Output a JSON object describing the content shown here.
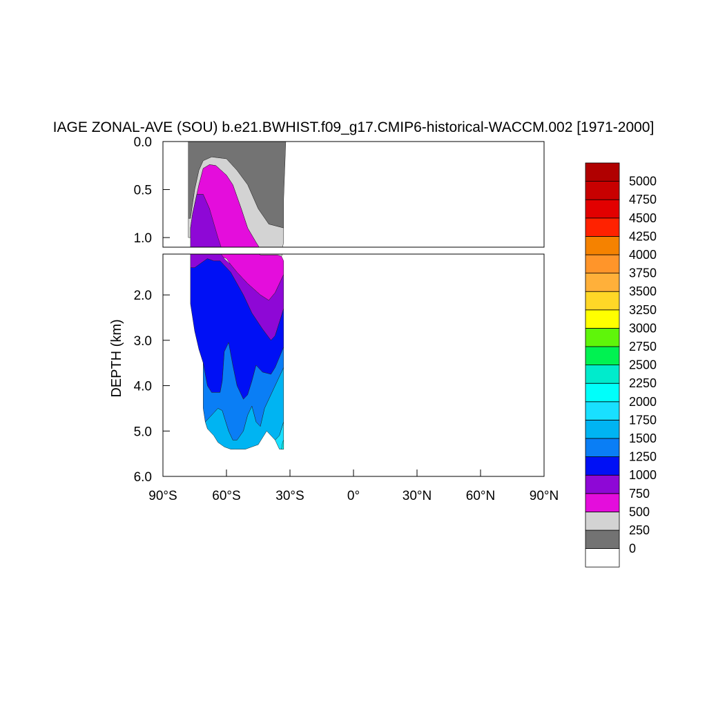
{
  "chart_data": {
    "type": "heatmap",
    "title": "IAGE ZONAL-AVE (SOU) b.e21.BWHIST.f09_g17.CMIP6-historical-WACCM.002 [1971-2000]",
    "ylabel": "DEPTH (km)",
    "xlabel": "",
    "x_range": [
      -90,
      90
    ],
    "y_range_km": [
      0,
      6
    ],
    "upper_panel_y_range_km": [
      0,
      1.1
    ],
    "lower_panel_y_range_km": [
      1.1,
      6
    ],
    "x_ticks": [
      "90°S",
      "60°S",
      "30°S",
      "0°",
      "30°N",
      "60°N",
      "90°N"
    ],
    "x_tick_values": [
      -90,
      -60,
      -30,
      0,
      30,
      60,
      90
    ],
    "y_ticks_upper": [
      "0.0",
      "0.5",
      "1.0"
    ],
    "y_tick_values_upper": [
      0.0,
      0.5,
      1.0
    ],
    "y_ticks_lower": [
      "2.0",
      "3.0",
      "4.0",
      "5.0",
      "6.0"
    ],
    "y_tick_values_lower": [
      2.0,
      3.0,
      4.0,
      5.0,
      6.0
    ],
    "data_extent_lat": [
      -78,
      -31
    ],
    "max_depth_km": 5.4,
    "contour_levels": [
      0,
      250,
      500,
      750,
      1000,
      1250,
      1500,
      1750,
      2000,
      2250,
      2500,
      2750,
      3000,
      3250,
      3500,
      3750,
      4000,
      4250,
      4500,
      4750,
      5000
    ],
    "colorbar_labels": [
      "5000",
      "4750",
      "4500",
      "4250",
      "4000",
      "3750",
      "3500",
      "3250",
      "3000",
      "2750",
      "2500",
      "2250",
      "2000",
      "1750",
      "1500",
      "1250",
      "1000",
      "750",
      "500",
      "250",
      "0"
    ],
    "colorbar_colors": [
      "#ffffff",
      "#737373",
      "#d3d3d3",
      "#e40ddc",
      "#8e08d6",
      "#0010f5",
      "#0a7ef5",
      "#00b4f2",
      "#19e0ff",
      "#00fffa",
      "#00ebcc",
      "#00f251",
      "#5ff50a",
      "#ffff00",
      "#ffd727",
      "#ffb03a",
      "#ff952a",
      "#f58200",
      "#ff2200",
      "#e20000",
      "#c80000",
      "#b00000"
    ],
    "regions": [
      {
        "band": "0-250",
        "color": "#737373",
        "points": [
          [
            -78,
            0
          ],
          [
            -32,
            0
          ],
          [
            -33,
            0.6
          ],
          [
            -33,
            0.9
          ],
          [
            -40,
            0.86
          ],
          [
            -45,
            0.7
          ],
          [
            -50,
            0.45
          ],
          [
            -55,
            0.3
          ],
          [
            -60,
            0.18
          ],
          [
            -67,
            0.16
          ],
          [
            -71,
            0.2
          ],
          [
            -73,
            0.3
          ],
          [
            -75,
            0.5
          ],
          [
            -77,
            0.8
          ],
          [
            -78,
            0.8
          ]
        ]
      },
      {
        "band": "250-500",
        "color": "#d3d3d3",
        "points": [
          [
            -78,
            0.8
          ],
          [
            -77,
            0.8
          ],
          [
            -75,
            0.5
          ],
          [
            -73,
            0.3
          ],
          [
            -71,
            0.2
          ],
          [
            -67,
            0.16
          ],
          [
            -60,
            0.18
          ],
          [
            -55,
            0.3
          ],
          [
            -50,
            0.45
          ],
          [
            -45,
            0.7
          ],
          [
            -40,
            0.86
          ],
          [
            -33,
            0.9
          ],
          [
            -33,
            1.05
          ],
          [
            -34,
            1.15
          ],
          [
            -36,
            1.12
          ],
          [
            -40,
            1.12
          ],
          [
            -44,
            1.12
          ],
          [
            -46,
            1.05
          ],
          [
            -50,
            0.9
          ],
          [
            -53,
            0.7
          ],
          [
            -57,
            0.45
          ],
          [
            -60,
            0.35
          ],
          [
            -65,
            0.25
          ],
          [
            -68,
            0.24
          ],
          [
            -71,
            0.28
          ],
          [
            -73,
            0.45
          ],
          [
            -75,
            0.65
          ],
          [
            -76,
            0.8
          ],
          [
            -77,
            1.0
          ],
          [
            -78,
            1.0
          ]
        ]
      },
      {
        "band": "500-750",
        "color": "#e40ddc",
        "points": [
          [
            -77,
            1.0
          ],
          [
            -76,
            0.8
          ],
          [
            -75,
            0.65
          ],
          [
            -73,
            0.45
          ],
          [
            -71,
            0.28
          ],
          [
            -68,
            0.24
          ],
          [
            -65,
            0.25
          ],
          [
            -60,
            0.35
          ],
          [
            -57,
            0.45
          ],
          [
            -53,
            0.7
          ],
          [
            -50,
            0.9
          ],
          [
            -46,
            1.05
          ],
          [
            -44,
            1.12
          ],
          [
            -40,
            1.12
          ],
          [
            -36,
            1.12
          ],
          [
            -34,
            1.15
          ],
          [
            -33,
            1.25
          ],
          [
            -33,
            1.55
          ],
          [
            -37,
            1.95
          ],
          [
            -40,
            2.12
          ],
          [
            -44,
            2.0
          ],
          [
            -50,
            1.75
          ],
          [
            -55,
            1.5
          ],
          [
            -58,
            1.33
          ],
          [
            -60,
            1.2
          ],
          [
            -64,
            1.12
          ],
          [
            -68,
            0.7
          ],
          [
            -71,
            0.55
          ],
          [
            -74,
            0.55
          ],
          [
            -76,
            0.75
          ],
          [
            -77,
            0.9
          ]
        ]
      },
      {
        "band": "750-1000",
        "color": "#8e08d6",
        "points": [
          [
            -77,
            0.9
          ],
          [
            -76,
            0.75
          ],
          [
            -74,
            0.55
          ],
          [
            -71,
            0.55
          ],
          [
            -68,
            0.7
          ],
          [
            -64,
            1.0
          ],
          [
            -61,
            1.2
          ],
          [
            -58,
            1.33
          ],
          [
            -55,
            1.5
          ],
          [
            -50,
            1.75
          ],
          [
            -44,
            2.0
          ],
          [
            -40,
            2.12
          ],
          [
            -37,
            1.95
          ],
          [
            -33,
            1.55
          ],
          [
            -33,
            2.3
          ],
          [
            -35,
            2.6
          ],
          [
            -37,
            2.9
          ],
          [
            -39,
            3.0
          ],
          [
            -43,
            2.75
          ],
          [
            -48,
            2.4
          ],
          [
            -52,
            2.0
          ],
          [
            -55,
            1.75
          ],
          [
            -58,
            1.5
          ],
          [
            -63,
            1.25
          ],
          [
            -66,
            1.25
          ],
          [
            -69,
            1.2
          ],
          [
            -72,
            1.3
          ],
          [
            -75,
            1.4
          ],
          [
            -77,
            1.4
          ]
        ]
      },
      {
        "band": "1000-1250",
        "color": "#0010f5",
        "points": [
          [
            -77,
            1.4
          ],
          [
            -75,
            1.4
          ],
          [
            -72,
            1.3
          ],
          [
            -69,
            1.2
          ],
          [
            -66,
            1.25
          ],
          [
            -63,
            1.25
          ],
          [
            -58,
            1.5
          ],
          [
            -55,
            1.75
          ],
          [
            -52,
            2.0
          ],
          [
            -48,
            2.4
          ],
          [
            -43,
            2.75
          ],
          [
            -39,
            3.0
          ],
          [
            -37,
            2.9
          ],
          [
            -35,
            2.6
          ],
          [
            -33,
            2.3
          ],
          [
            -33,
            3.15
          ],
          [
            -37,
            3.6
          ],
          [
            -39,
            3.75
          ],
          [
            -43,
            3.7
          ],
          [
            -46,
            3.55
          ],
          [
            -48,
            3.9
          ],
          [
            -50,
            4.2
          ],
          [
            -52,
            4.3
          ],
          [
            -55,
            4.0
          ],
          [
            -57,
            3.55
          ],
          [
            -59,
            3.05
          ],
          [
            -61,
            3.25
          ],
          [
            -62,
            3.9
          ],
          [
            -63,
            4.15
          ],
          [
            -67,
            4.15
          ],
          [
            -69,
            4.0
          ],
          [
            -71,
            3.5
          ],
          [
            -73,
            3.2
          ],
          [
            -75,
            2.8
          ],
          [
            -77,
            2.2
          ]
        ]
      },
      {
        "band": "1250-1500",
        "color": "#0a7ef5",
        "points": [
          [
            -71,
            3.5
          ],
          [
            -69,
            4.0
          ],
          [
            -67,
            4.15
          ],
          [
            -63,
            4.15
          ],
          [
            -62,
            3.9
          ],
          [
            -61,
            3.25
          ],
          [
            -59,
            3.05
          ],
          [
            -57,
            3.55
          ],
          [
            -55,
            4.0
          ],
          [
            -52,
            4.3
          ],
          [
            -50,
            4.2
          ],
          [
            -48,
            3.9
          ],
          [
            -46,
            3.55
          ],
          [
            -43,
            3.7
          ],
          [
            -39,
            3.75
          ],
          [
            -37,
            3.6
          ],
          [
            -33,
            3.15
          ],
          [
            -33,
            3.6
          ],
          [
            -36,
            3.9
          ],
          [
            -39,
            4.2
          ],
          [
            -42,
            4.5
          ],
          [
            -44,
            4.9
          ],
          [
            -46,
            4.8
          ],
          [
            -48,
            4.45
          ],
          [
            -50,
            4.65
          ],
          [
            -52,
            5.0
          ],
          [
            -55,
            5.2
          ],
          [
            -57,
            5.2
          ],
          [
            -59,
            5.0
          ],
          [
            -61,
            4.7
          ],
          [
            -62,
            4.55
          ],
          [
            -64,
            4.5
          ],
          [
            -66,
            4.6
          ],
          [
            -68,
            4.7
          ],
          [
            -70,
            4.8
          ],
          [
            -71,
            4.5
          ]
        ]
      },
      {
        "band": "1500-1750",
        "color": "#00b4f2",
        "points": [
          [
            -70,
            4.8
          ],
          [
            -68,
            4.7
          ],
          [
            -66,
            4.6
          ],
          [
            -64,
            4.5
          ],
          [
            -62,
            4.55
          ],
          [
            -61,
            4.7
          ],
          [
            -59,
            5.0
          ],
          [
            -57,
            5.2
          ],
          [
            -55,
            5.2
          ],
          [
            -52,
            5.0
          ],
          [
            -50,
            4.65
          ],
          [
            -48,
            4.45
          ],
          [
            -46,
            4.8
          ],
          [
            -44,
            4.9
          ],
          [
            -42,
            4.5
          ],
          [
            -39,
            4.2
          ],
          [
            -36,
            3.9
          ],
          [
            -33,
            3.6
          ],
          [
            -33,
            4.8
          ],
          [
            -35,
            5.1
          ],
          [
            -37,
            5.2
          ],
          [
            -41,
            5.0
          ],
          [
            -45,
            5.3
          ],
          [
            -48,
            5.35
          ],
          [
            -51,
            5.4
          ],
          [
            -56,
            5.4
          ],
          [
            -58,
            5.4
          ],
          [
            -61,
            5.35
          ],
          [
            -64,
            5.25
          ],
          [
            -66,
            5.1
          ],
          [
            -68,
            5.0
          ],
          [
            -69,
            4.95
          ]
        ]
      },
      {
        "band": "1750-2000",
        "color": "#19e0ff",
        "points": [
          [
            -33,
            4.8
          ],
          [
            -33,
            5.4
          ],
          [
            -35,
            5.4
          ],
          [
            -36,
            5.3
          ],
          [
            -37,
            5.2
          ],
          [
            -35,
            5.1
          ]
        ]
      },
      {
        "band": "2000-2250",
        "color": "#00fffa",
        "points": [
          [
            -33,
            5.2
          ],
          [
            -33,
            5.4
          ],
          [
            -34,
            5.4
          ],
          [
            -33.5,
            5.25
          ]
        ]
      }
    ]
  }
}
